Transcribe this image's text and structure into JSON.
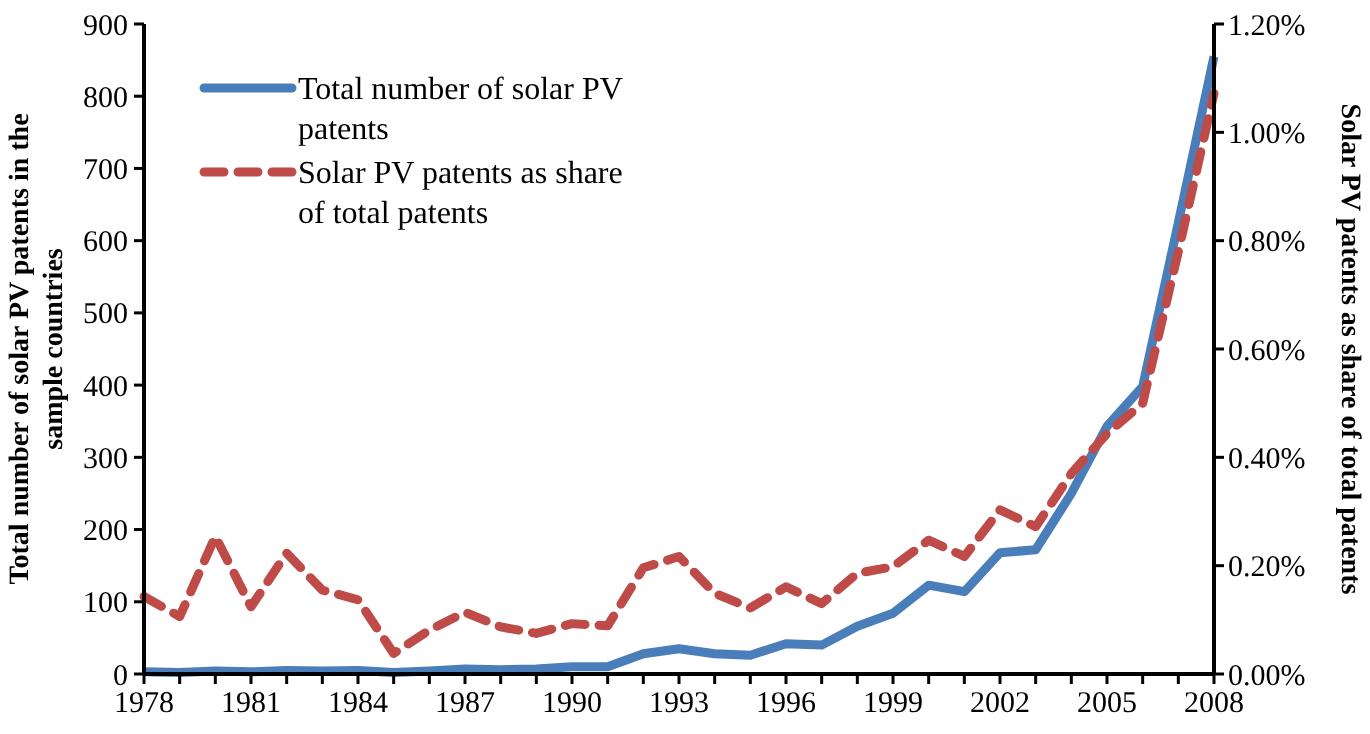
{
  "chart_data": {
    "type": "line",
    "xlabel": null,
    "ylabel": "Total number of solar PV patents in the sample countries",
    "y2label": "Solar PV patents as share of total patents",
    "x": [
      1978,
      1979,
      1980,
      1981,
      1982,
      1983,
      1984,
      1985,
      1986,
      1987,
      1988,
      1989,
      1990,
      1991,
      1992,
      1993,
      1994,
      1995,
      1996,
      1997,
      1998,
      1999,
      2000,
      2001,
      2002,
      2003,
      2004,
      2005,
      2006,
      2007,
      2008
    ],
    "series": [
      {
        "name": "Total number of solar PV patents",
        "color": "#4a7ebb",
        "line_style": "solid",
        "values": [
          3,
          2,
          4,
          3,
          5,
          4,
          5,
          2,
          4,
          7,
          6,
          7,
          10,
          10,
          28,
          35,
          28,
          26,
          42,
          40,
          66,
          84,
          123,
          114,
          168,
          172,
          250,
          343,
          398,
          625,
          855
        ]
      },
      {
        "name": "Solar PV patents as share of total patents",
        "color": "#be4b48",
        "line_style": "dashed",
        "axis": "y2",
        "values": [
          0.143,
          0.106,
          0.254,
          0.124,
          0.223,
          0.155,
          0.137,
          0.038,
          0.081,
          0.114,
          0.087,
          0.075,
          0.093,
          0.089,
          0.196,
          0.217,
          0.149,
          0.122,
          0.161,
          0.13,
          0.186,
          0.198,
          0.247,
          0.217,
          0.303,
          0.272,
          0.37,
          0.444,
          0.5,
          0.78,
          1.072
        ]
      }
    ],
    "xlim": [
      1978,
      2008
    ],
    "xticks": [
      1978,
      {
        "value": 1979,
        "label": null
      },
      {
        "value": 1980,
        "label": null
      },
      1981,
      {
        "value": 1982,
        "label": null
      },
      {
        "value": 1983,
        "label": null
      },
      1984,
      {
        "value": 1985,
        "label": null
      },
      {
        "value": 1986,
        "label": null
      },
      1987,
      {
        "value": 1988,
        "label": null
      },
      {
        "value": 1989,
        "label": null
      },
      1990,
      {
        "value": 1991,
        "label": null
      },
      {
        "value": 1992,
        "label": null
      },
      1993,
      {
        "value": 1994,
        "label": null
      },
      {
        "value": 1995,
        "label": null
      },
      1996,
      {
        "value": 1997,
        "label": null
      },
      {
        "value": 1998,
        "label": null
      },
      1999,
      {
        "value": 2000,
        "label": null
      },
      {
        "value": 2001,
        "label": null
      },
      2002,
      {
        "value": 2003,
        "label": null
      },
      {
        "value": 2004,
        "label": null
      },
      2005,
      {
        "value": 2006,
        "label": null
      },
      {
        "value": 2007,
        "label": null
      },
      2008
    ],
    "ylim": [
      0,
      900
    ],
    "yticks": [
      0,
      100,
      200,
      300,
      400,
      500,
      600,
      700,
      800,
      900
    ],
    "y2lim": [
      0,
      1.2
    ],
    "y2ticks": [
      {
        "value": 0,
        "label": "0.00%"
      },
      {
        "value": 0.2,
        "label": "0.20%"
      },
      {
        "value": 0.4,
        "label": "0.40%"
      },
      {
        "value": 0.6,
        "label": "0.60%"
      },
      {
        "value": 0.8,
        "label": "0.80%"
      },
      {
        "value": 1.0,
        "label": "1.00%"
      },
      {
        "value": 1.2,
        "label": "1.20%"
      }
    ],
    "grid": false,
    "legend": "top left",
    "marker": "none"
  }
}
